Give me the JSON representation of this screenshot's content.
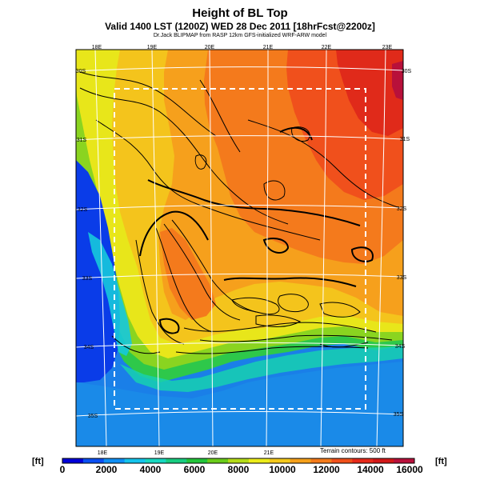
{
  "title": "Height of BL Top",
  "subtitle": "Valid 1400 LST (1200Z) WED 28 Dec 2011 [18hrFcst@2200z]",
  "credit": "Dr.Jack BLIPMAP from RASP 12km GFS-initialized WRF-ARW model",
  "map": {
    "lon_labels_top": [
      "18E",
      "19E",
      "20E",
      "21E",
      "22E",
      "23E"
    ],
    "lon_labels_bottom": [
      "18E",
      "19E",
      "20E",
      "21E"
    ],
    "lat_labels_right": [
      "30S",
      "31S",
      "32S",
      "33S",
      "34S",
      "35S"
    ],
    "lat_labels_left": [
      "30S",
      "31S",
      "32S",
      "33S",
      "34S",
      "35S"
    ],
    "terrain_note": "Terrain contours: 500 ft"
  },
  "colorbar": {
    "unit_left": "[ft]",
    "unit_right": "[ft]",
    "ticks": [
      "0",
      "2000",
      "4000",
      "6000",
      "8000",
      "10000",
      "12000",
      "14000",
      "16000"
    ],
    "colors": [
      "#0000d8",
      "#0a4ff2",
      "#0f8ff5",
      "#14c4ec",
      "#18d8c0",
      "#18cc80",
      "#22c43a",
      "#6acc1a",
      "#b4dc18",
      "#ecec1a",
      "#f4c81a",
      "#f6a01a",
      "#f47a1a",
      "#f0501a",
      "#e62a1a",
      "#d21818",
      "#b8103a"
    ]
  }
}
